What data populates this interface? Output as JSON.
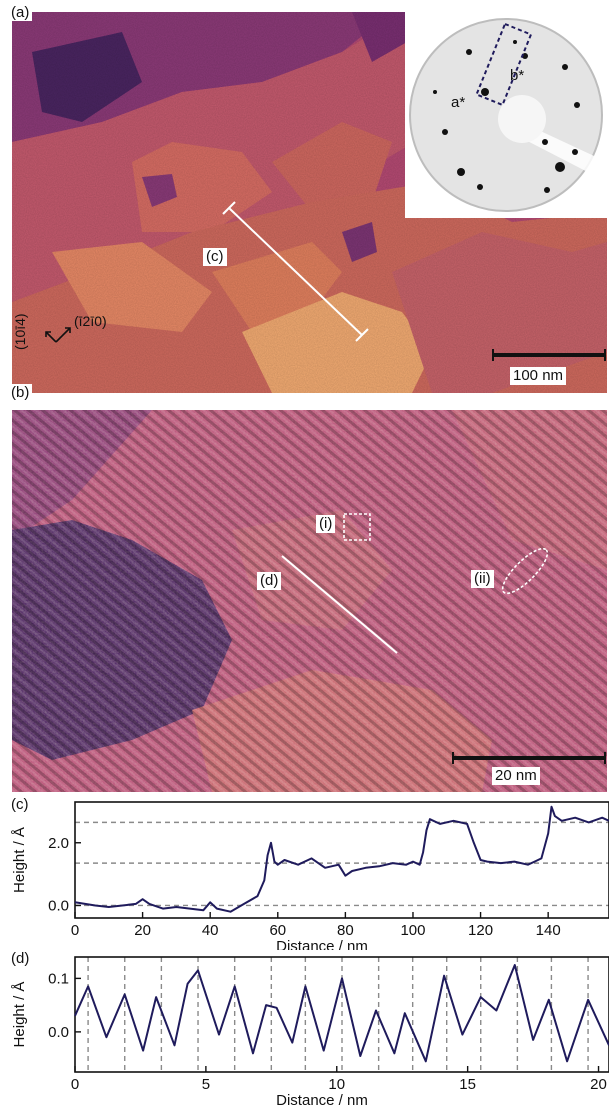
{
  "figure": {
    "panel_a": {
      "label": "(a)",
      "line_label": "(c)",
      "scale_bar": "100 nm",
      "dir_left": "(10ī4)",
      "dir_right": "(ī2ī0)",
      "inset": {
        "a_label": "a*",
        "b_label": "b*"
      }
    },
    "panel_b": {
      "label": "(b)",
      "line_label": "(d)",
      "marker_i": "(i)",
      "marker_ii": "(ii)",
      "scale_bar": "20 nm"
    },
    "colors": {
      "scan_dark": "#3c1d4f",
      "scan_mid": "#a63f78",
      "scan_light": "#f2b06b",
      "trace": "#1f1b5c",
      "guide": "#8a8a8a"
    }
  },
  "chart_data": [
    {
      "type": "line",
      "panel_label": "(c)",
      "xlabel": "Distance / nm",
      "ylabel": "Height / Å",
      "xlim": [
        0,
        158
      ],
      "ylim": [
        -0.4,
        3.3
      ],
      "xticks": [
        "0",
        "20",
        "40",
        "60",
        "80",
        "100",
        "120",
        "140"
      ],
      "yticks": [
        "0.0",
        "2.0"
      ],
      "guides_y": [
        0.0,
        1.35,
        2.65
      ],
      "x": [
        0,
        3,
        6,
        10,
        14,
        18,
        20,
        22,
        26,
        30,
        34,
        38,
        40,
        42,
        46,
        50,
        54,
        56,
        57,
        58,
        59,
        60,
        62,
        66,
        70,
        74,
        78,
        80,
        82,
        86,
        90,
        94,
        98,
        100,
        102,
        103,
        104,
        105,
        108,
        112,
        116,
        118,
        120,
        122,
        126,
        130,
        134,
        136,
        138,
        140,
        141,
        142,
        144,
        148,
        152,
        156,
        158
      ],
      "values": [
        0.1,
        0.05,
        0.0,
        -0.05,
        0.0,
        0.05,
        0.2,
        0.05,
        -0.1,
        -0.05,
        -0.1,
        -0.15,
        0.1,
        -0.1,
        -0.2,
        0.05,
        0.3,
        0.8,
        1.6,
        2.0,
        1.4,
        1.3,
        1.45,
        1.3,
        1.5,
        1.2,
        1.3,
        0.95,
        1.1,
        1.2,
        1.25,
        1.35,
        1.3,
        1.4,
        1.3,
        1.7,
        2.4,
        2.75,
        2.6,
        2.7,
        2.6,
        2.0,
        1.45,
        1.4,
        1.35,
        1.4,
        1.3,
        1.4,
        1.5,
        2.3,
        3.15,
        2.85,
        2.7,
        2.8,
        2.65,
        2.8,
        2.7
      ]
    },
    {
      "type": "line",
      "panel_label": "(d)",
      "xlabel": "Distance / nm",
      "ylabel": "Height / Å",
      "xlim": [
        0,
        20.4
      ],
      "ylim": [
        -0.075,
        0.14
      ],
      "xticks": [
        "0",
        "5",
        "10",
        "15",
        "20"
      ],
      "yticks": [
        "0.0",
        "0.1"
      ],
      "guides_x": [
        0.5,
        1.9,
        3.3,
        4.7,
        6.1,
        7.5,
        8.8,
        10.2,
        11.6,
        12.9,
        14.2,
        15.5,
        16.9,
        18.2,
        19.6
      ],
      "x": [
        0,
        0.5,
        1.2,
        1.9,
        2.6,
        3.1,
        3.8,
        4.3,
        4.7,
        5.5,
        6.1,
        6.8,
        7.3,
        7.7,
        8.3,
        8.8,
        9.5,
        10.2,
        10.9,
        11.5,
        12.2,
        12.6,
        13.4,
        14.1,
        14.8,
        15.5,
        16.1,
        16.8,
        17.5,
        18.1,
        18.8,
        19.6,
        20.4
      ],
      "values": [
        0.03,
        0.085,
        -0.01,
        0.07,
        -0.035,
        0.065,
        -0.025,
        0.09,
        0.115,
        -0.005,
        0.085,
        -0.04,
        0.05,
        0.045,
        -0.02,
        0.085,
        -0.035,
        0.1,
        -0.045,
        0.04,
        -0.04,
        0.035,
        -0.055,
        0.105,
        -0.005,
        0.065,
        0.04,
        0.125,
        -0.015,
        0.06,
        -0.055,
        0.06,
        -0.025
      ]
    }
  ]
}
